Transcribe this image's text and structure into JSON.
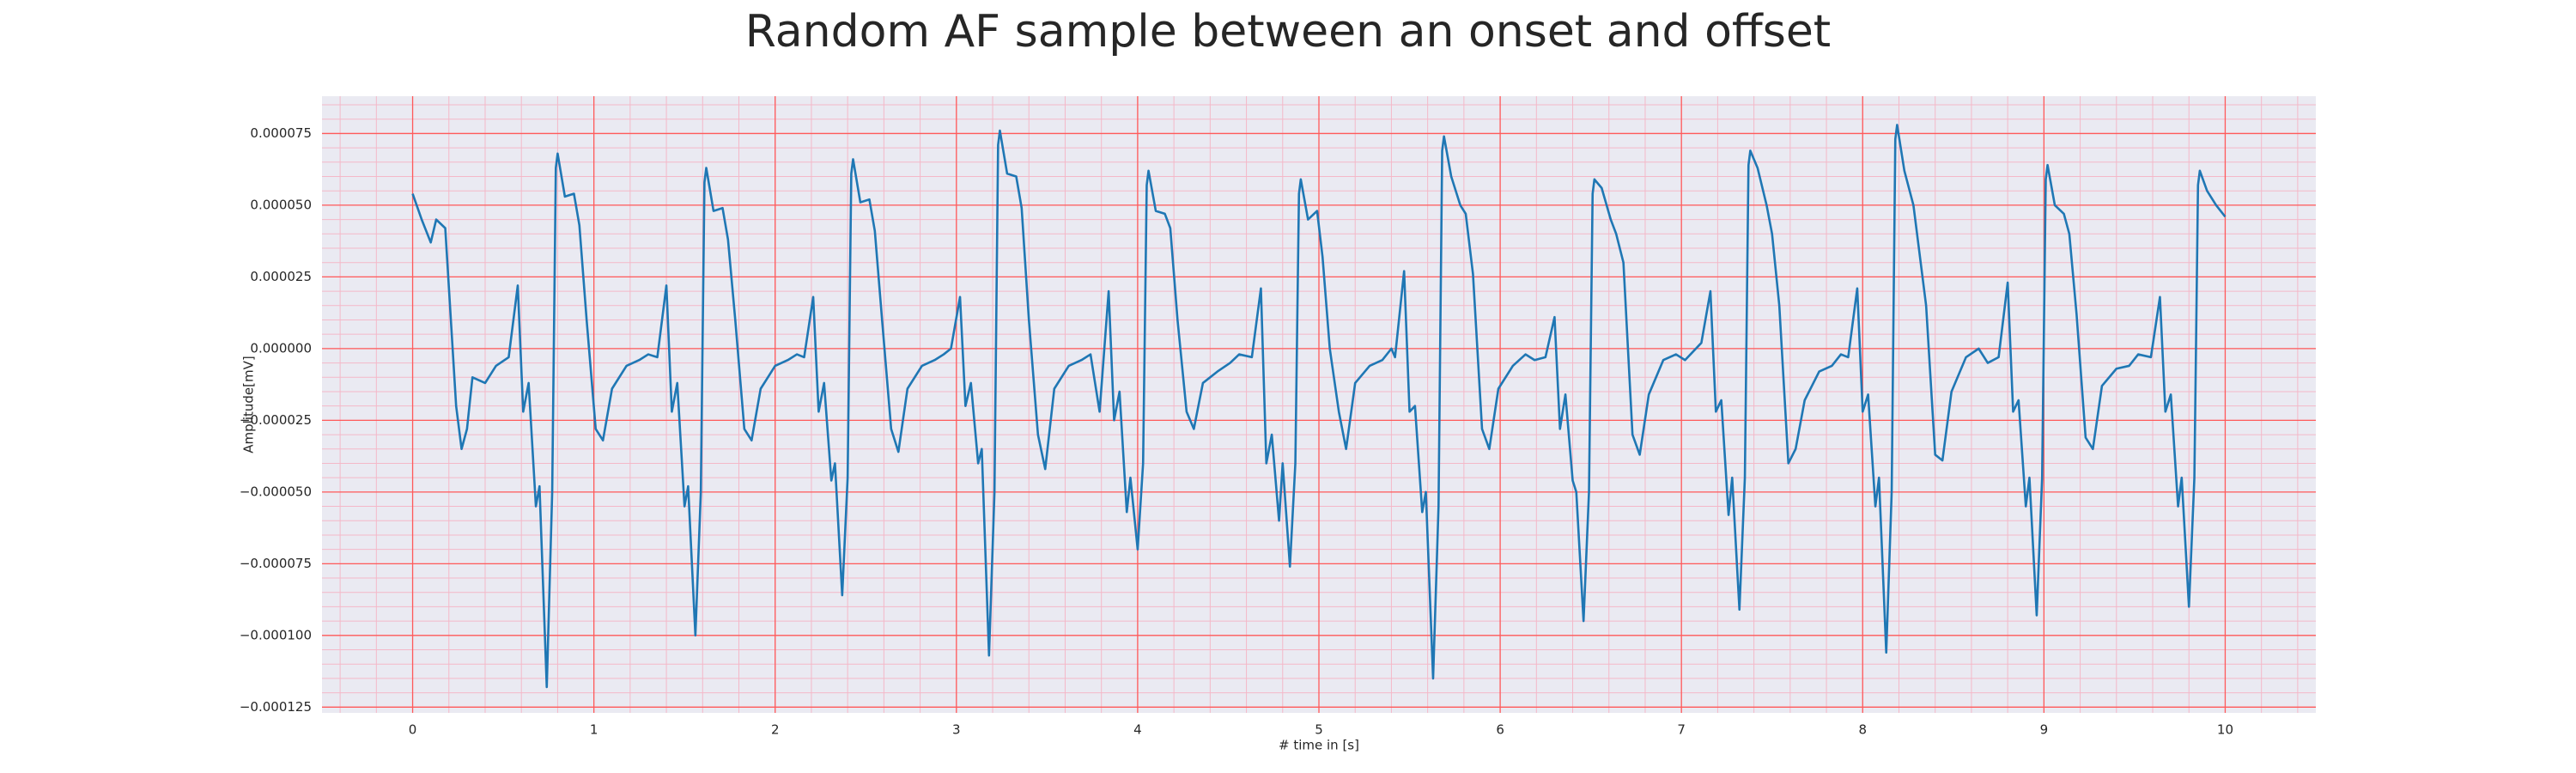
{
  "chart_data": {
    "type": "line",
    "title": "Random AF sample between an onset and offset",
    "xlabel": "# time in [s]",
    "ylabel": "Amplitude[mV]",
    "color": "#1f77b4",
    "grid": true,
    "xlim": [
      -0.5,
      10.5
    ],
    "ylim": [
      -0.000127,
      8.8e-05
    ],
    "xticks": [
      0,
      1,
      2,
      3,
      4,
      5,
      6,
      7,
      8,
      9,
      10
    ],
    "yticks": [
      {
        "value": -0.000125,
        "label": "−0.000125"
      },
      {
        "value": -0.0001,
        "label": "−0.000100"
      },
      {
        "value": -7.5e-05,
        "label": "−0.000075"
      },
      {
        "value": -5e-05,
        "label": "−0.000050"
      },
      {
        "value": -2.5e-05,
        "label": "−0.000025"
      },
      {
        "value": 0,
        "label": "0.000000"
      },
      {
        "value": 2.5e-05,
        "label": "0.000025"
      },
      {
        "value": 5e-05,
        "label": "0.000050"
      },
      {
        "value": 7.5e-05,
        "label": "0.000075"
      }
    ],
    "x": [
      0,
      0.05,
      0.1,
      0.13,
      0.18,
      0.24,
      0.27,
      0.3,
      0.33,
      0.4,
      0.46,
      0.53,
      0.58,
      0.61,
      0.64,
      0.68,
      0.7,
      0.74,
      0.77,
      0.79,
      0.8,
      0.84,
      0.89,
      0.92,
      0.96,
      1.01,
      1.05,
      1.1,
      1.18,
      1.25,
      1.3,
      1.35,
      1.4,
      1.43,
      1.46,
      1.5,
      1.52,
      1.56,
      1.59,
      1.61,
      1.62,
      1.66,
      1.71,
      1.74,
      1.78,
      1.83,
      1.87,
      1.92,
      2,
      2.07,
      2.12,
      2.16,
      2.21,
      2.24,
      2.27,
      2.31,
      2.33,
      2.37,
      2.4,
      2.42,
      2.43,
      2.47,
      2.52,
      2.55,
      2.59,
      2.64,
      2.68,
      2.73,
      2.81,
      2.88,
      2.93,
      2.97,
      3.02,
      3.05,
      3.08,
      3.12,
      3.14,
      3.18,
      3.21,
      3.23,
      3.24,
      3.28,
      3.33,
      3.36,
      3.4,
      3.45,
      3.49,
      3.54,
      3.62,
      3.69,
      3.74,
      3.79,
      3.84,
      3.87,
      3.9,
      3.94,
      3.96,
      4,
      4.03,
      4.05,
      4.06,
      4.1,
      4.15,
      4.18,
      4.22,
      4.27,
      4.31,
      4.36,
      4.44,
      4.51,
      4.56,
      4.63,
      4.68,
      4.71,
      4.74,
      4.78,
      4.8,
      4.84,
      4.87,
      4.89,
      4.9,
      4.94,
      4.99,
      5.02,
      5.06,
      5.11,
      5.15,
      5.2,
      5.28,
      5.35,
      5.4,
      5.42,
      5.47,
      5.5,
      5.53,
      5.57,
      5.59,
      5.63,
      5.66,
      5.68,
      5.69,
      5.73,
      5.78,
      5.81,
      5.85,
      5.9,
      5.94,
      5.99,
      6.07,
      6.14,
      6.19,
      6.25,
      6.3,
      6.33,
      6.36,
      6.4,
      6.42,
      6.46,
      6.49,
      6.51,
      6.52,
      6.56,
      6.61,
      6.64,
      6.68,
      6.73,
      6.77,
      6.82,
      6.9,
      6.97,
      7.02,
      7.11,
      7.16,
      7.19,
      7.22,
      7.26,
      7.28,
      7.32,
      7.35,
      7.37,
      7.38,
      7.42,
      7.47,
      7.5,
      7.54,
      7.59,
      7.63,
      7.68,
      7.76,
      7.83,
      7.88,
      7.92,
      7.97,
      8,
      8.03,
      8.07,
      8.09,
      8.13,
      8.16,
      8.18,
      8.19,
      8.23,
      8.28,
      8.31,
      8.35,
      8.4,
      8.44,
      8.49,
      8.57,
      8.64,
      8.69,
      8.75,
      8.8,
      8.83,
      8.86,
      8.9,
      8.92,
      8.96,
      8.99,
      9.01,
      9.02,
      9.06,
      9.11,
      9.14,
      9.18,
      9.23,
      9.27,
      9.32,
      9.4,
      9.47,
      9.52,
      9.59,
      9.64,
      9.67,
      9.7,
      9.74,
      9.76,
      9.8,
      9.83,
      9.85,
      9.86,
      9.9,
      9.95,
      10
    ],
    "values": [
      5.4e-05,
      4.5e-05,
      3.7e-05,
      4.5e-05,
      4.2e-05,
      -2e-05,
      -3.5e-05,
      -2.8e-05,
      -1e-05,
      -1.2e-05,
      -6e-06,
      -3e-06,
      2.2e-05,
      -2.2e-05,
      -1.2e-05,
      -5.5e-05,
      -4.8e-05,
      -0.000118,
      -5e-05,
      6.3e-05,
      6.8e-05,
      5.3e-05,
      5.4e-05,
      4.3e-05,
      1e-05,
      -2.8e-05,
      -3.2e-05,
      -1.4e-05,
      -6e-06,
      -4e-06,
      -2e-06,
      -3e-06,
      2.2e-05,
      -2.2e-05,
      -1.2e-05,
      -5.5e-05,
      -4.8e-05,
      -0.0001,
      -5e-05,
      5.8e-05,
      6.3e-05,
      4.8e-05,
      4.9e-05,
      3.8e-05,
      1e-05,
      -2.8e-05,
      -3.2e-05,
      -1.4e-05,
      -6e-06,
      -4e-06,
      -2e-06,
      -3e-06,
      1.8e-05,
      -2.2e-05,
      -1.2e-05,
      -4.6e-05,
      -4e-05,
      -8.6e-05,
      -4.5e-05,
      6.1e-05,
      6.6e-05,
      5.1e-05,
      5.2e-05,
      4.1e-05,
      1e-05,
      -2.8e-05,
      -3.6e-05,
      -1.4e-05,
      -6e-06,
      -4e-06,
      -2e-06,
      0,
      1.8e-05,
      -2e-05,
      -1.2e-05,
      -4e-05,
      -3.5e-05,
      -0.000107,
      -5e-05,
      7.1e-05,
      7.6e-05,
      6.1e-05,
      6e-05,
      4.9e-05,
      1e-05,
      -3e-05,
      -4.2e-05,
      -1.4e-05,
      -6e-06,
      -4e-06,
      -2e-06,
      -2.2e-05,
      2e-05,
      -2.5e-05,
      -1.5e-05,
      -5.7e-05,
      -4.5e-05,
      -7e-05,
      -4e-05,
      5.7e-05,
      6.2e-05,
      4.8e-05,
      4.7e-05,
      4.2e-05,
      1e-05,
      -2.2e-05,
      -2.8e-05,
      -1.2e-05,
      -8e-06,
      -5e-06,
      -2e-06,
      -3e-06,
      2.1e-05,
      -4e-05,
      -3e-05,
      -6e-05,
      -4e-05,
      -7.6e-05,
      -4e-05,
      5.4e-05,
      5.9e-05,
      4.5e-05,
      4.8e-05,
      3.2e-05,
      0,
      -2.2e-05,
      -3.5e-05,
      -1.2e-05,
      -6e-06,
      -4e-06,
      0,
      -3e-06,
      2.7e-05,
      -2.2e-05,
      -2e-05,
      -5.7e-05,
      -5e-05,
      -0.000115,
      -5.5e-05,
      6.9e-05,
      7.4e-05,
      6e-05,
      5e-05,
      4.7e-05,
      2.6e-05,
      -2.8e-05,
      -3.5e-05,
      -1.4e-05,
      -6e-06,
      -2e-06,
      -4e-06,
      -3e-06,
      1.1e-05,
      -2.8e-05,
      -1.6e-05,
      -4.6e-05,
      -5e-05,
      -9.5e-05,
      -5e-05,
      5.4e-05,
      5.9e-05,
      5.6e-05,
      4.5e-05,
      4e-05,
      3e-05,
      -3e-05,
      -3.7e-05,
      -1.6e-05,
      -4e-06,
      -2e-06,
      -4e-06,
      2e-06,
      2e-05,
      -2.2e-05,
      -1.8e-05,
      -5.8e-05,
      -4.5e-05,
      -9.1e-05,
      -4.5e-05,
      6.4e-05,
      6.9e-05,
      6.3e-05,
      5e-05,
      4e-05,
      1.5e-05,
      -4e-05,
      -3.5e-05,
      -1.8e-05,
      -8e-06,
      -6e-06,
      -2e-06,
      -3e-06,
      2.1e-05,
      -2.2e-05,
      -1.6e-05,
      -5.5e-05,
      -4.5e-05,
      -0.000106,
      -5e-05,
      7.3e-05,
      7.8e-05,
      6.2e-05,
      5e-05,
      3.5e-05,
      1.5e-05,
      -3.7e-05,
      -3.9e-05,
      -1.5e-05,
      -3e-06,
      0,
      -5e-06,
      -3e-06,
      2.3e-05,
      -2.2e-05,
      -1.8e-05,
      -5.5e-05,
      -4.5e-05,
      -9.3e-05,
      -4.5e-05,
      5.9e-05,
      6.4e-05,
      5e-05,
      4.7e-05,
      4e-05,
      1.2e-05,
      -3.1e-05,
      -3.5e-05,
      -1.3e-05,
      -7e-06,
      -6e-06,
      -2e-06,
      -3e-06,
      1.8e-05,
      -2.2e-05,
      -1.6e-05,
      -5.5e-05,
      -4.5e-05,
      -9e-05,
      -4.5e-05,
      5.7e-05,
      6.2e-05,
      5.5e-05,
      5e-05,
      4.6e-05
    ]
  }
}
